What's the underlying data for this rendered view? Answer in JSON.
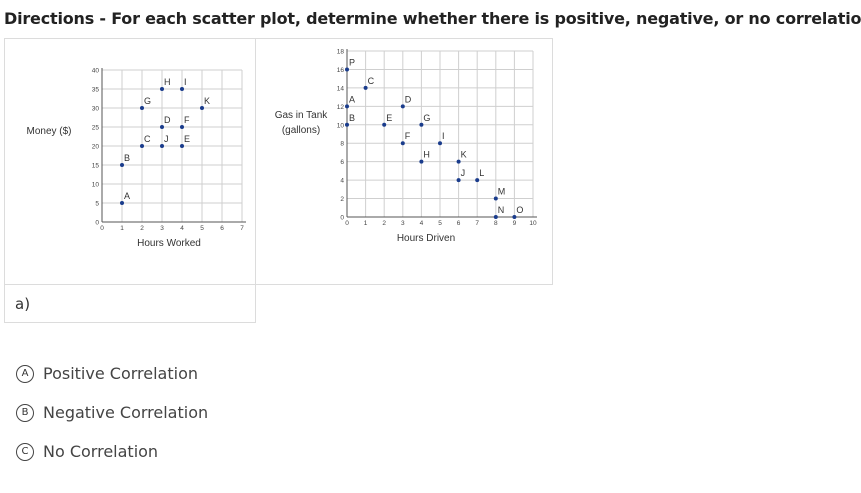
{
  "directions": "Directions - For each scatter plot, determine whether there is positive, negative, or no correlation.",
  "question_label": "a)",
  "options": [
    {
      "letter": "A",
      "label": "Positive Correlation"
    },
    {
      "letter": "B",
      "label": "Negative Correlation"
    },
    {
      "letter": "C",
      "label": "No Correlation"
    }
  ],
  "chart_data": [
    {
      "type": "scatter",
      "xlabel": "Hours Worked",
      "ylabel": "Money ($)",
      "xlim": [
        0,
        7
      ],
      "ylim": [
        0,
        40
      ],
      "xticks": [
        "0",
        "1",
        "2",
        "3",
        "4",
        "5",
        "6",
        "7"
      ],
      "yticks": [
        "0",
        "5",
        "10",
        "15",
        "20",
        "25",
        "30",
        "35",
        "40"
      ],
      "grid": true,
      "points": [
        {
          "label": "A",
          "x": 1,
          "y": 5
        },
        {
          "label": "B",
          "x": 1,
          "y": 15
        },
        {
          "label": "C",
          "x": 2,
          "y": 20
        },
        {
          "label": "G",
          "x": 2,
          "y": 30
        },
        {
          "label": "D",
          "x": 3,
          "y": 25
        },
        {
          "label": "J",
          "x": 3,
          "y": 20
        },
        {
          "label": "H",
          "x": 3,
          "y": 35
        },
        {
          "label": "F",
          "x": 4,
          "y": 25
        },
        {
          "label": "E",
          "x": 4,
          "y": 20
        },
        {
          "label": "I",
          "x": 4,
          "y": 35
        },
        {
          "label": "K",
          "x": 5,
          "y": 30
        }
      ],
      "point_color": "#1a3c8c"
    },
    {
      "type": "scatter",
      "xlabel": "Hours Driven",
      "ylabel": [
        "Gas in Tank",
        "(gallons)"
      ],
      "xlim": [
        0,
        10
      ],
      "ylim": [
        0,
        18
      ],
      "xticks": [
        "0",
        "1",
        "2",
        "3",
        "4",
        "5",
        "6",
        "7",
        "8",
        "9",
        "10"
      ],
      "yticks": [
        "0",
        "2",
        "4",
        "6",
        "8",
        "10",
        "12",
        "14",
        "16",
        "18"
      ],
      "grid": true,
      "points": [
        {
          "label": "P",
          "x": 0,
          "y": 16
        },
        {
          "label": "A",
          "x": 0,
          "y": 12
        },
        {
          "label": "B",
          "x": 0,
          "y": 10
        },
        {
          "label": "C",
          "x": 1,
          "y": 14
        },
        {
          "label": "D",
          "x": 3,
          "y": 12
        },
        {
          "label": "E",
          "x": 2,
          "y": 10
        },
        {
          "label": "G",
          "x": 4,
          "y": 10
        },
        {
          "label": "F",
          "x": 3,
          "y": 8
        },
        {
          "label": "I",
          "x": 5,
          "y": 8
        },
        {
          "label": "H",
          "x": 4,
          "y": 6
        },
        {
          "label": "K",
          "x": 6,
          "y": 6
        },
        {
          "label": "J",
          "x": 6,
          "y": 4
        },
        {
          "label": "L",
          "x": 7,
          "y": 4
        },
        {
          "label": "M",
          "x": 8,
          "y": 2
        },
        {
          "label": "N",
          "x": 8,
          "y": 0
        },
        {
          "label": "O",
          "x": 9,
          "y": 0
        }
      ],
      "point_color": "#1a3c8c"
    }
  ]
}
